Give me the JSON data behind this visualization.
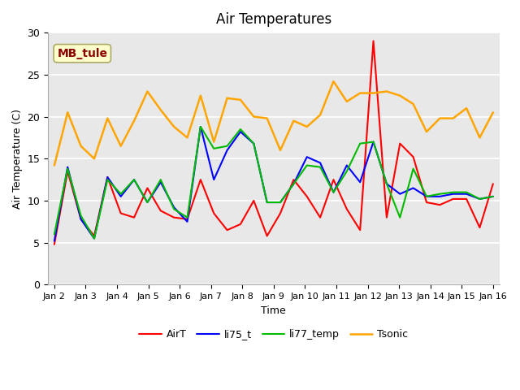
{
  "title": "Air Temperatures",
  "xlabel": "Time",
  "ylabel": "Air Temperature (C)",
  "ylim": [
    0,
    30
  ],
  "yticks": [
    0,
    5,
    10,
    15,
    20,
    25,
    30
  ],
  "xlabels": [
    "Jan 2",
    "Jan 3",
    "Jan 4",
    "Jan 5",
    "Jan 6",
    "Jan 7",
    "Jan 8",
    "Jan 9",
    "Jan 10",
    "Jan 11",
    "Jan 12",
    "Jan 13",
    "Jan 14",
    "Jan 15",
    "Jan 16"
  ],
  "annotation": "MB_tule",
  "annotation_color": "#8B0000",
  "annotation_bg": "#FFFFCC",
  "bg_color": "#E8E8E8",
  "grid_color": "#FFFFFF",
  "series_order": [
    "AirT",
    "li75_t",
    "li77_temp",
    "Tsonic"
  ],
  "series": {
    "AirT": {
      "color": "#FF0000",
      "lw": 1.5,
      "data": [
        4.8,
        13.5,
        7.8,
        5.8,
        12.8,
        8.5,
        8.0,
        11.5,
        8.8,
        8.0,
        7.8,
        12.5,
        8.5,
        6.5,
        7.2,
        10.0,
        5.8,
        8.5,
        12.5,
        10.5,
        8.0,
        12.5,
        9.0,
        6.5,
        29.0,
        8.0,
        16.8,
        15.2,
        9.8,
        9.5,
        10.2,
        10.2,
        6.8,
        12.0
      ]
    },
    "li75_t": {
      "color": "#0000FF",
      "lw": 1.5,
      "data": [
        5.2,
        14.0,
        7.8,
        5.5,
        12.8,
        10.5,
        12.5,
        9.8,
        12.2,
        9.2,
        7.5,
        18.8,
        12.5,
        16.0,
        18.2,
        16.8,
        9.8,
        9.8,
        12.0,
        15.2,
        14.5,
        11.0,
        14.2,
        12.2,
        17.0,
        12.0,
        10.8,
        11.5,
        10.5,
        10.5,
        10.8,
        10.8,
        10.2,
        10.5
      ]
    },
    "li77_temp": {
      "color": "#00BB00",
      "lw": 1.5,
      "data": [
        6.0,
        13.8,
        8.2,
        5.5,
        12.5,
        10.8,
        12.5,
        9.8,
        12.5,
        9.0,
        8.0,
        18.8,
        16.2,
        16.5,
        18.5,
        16.8,
        9.8,
        9.8,
        12.0,
        14.2,
        14.0,
        11.0,
        13.5,
        16.8,
        17.0,
        12.0,
        8.0,
        13.8,
        10.5,
        10.8,
        11.0,
        11.0,
        10.2,
        10.5
      ]
    },
    "Tsonic": {
      "color": "#FFA500",
      "lw": 1.8,
      "data": [
        14.2,
        20.5,
        16.5,
        15.0,
        19.8,
        16.5,
        19.5,
        23.0,
        20.8,
        18.8,
        17.5,
        22.5,
        17.0,
        22.2,
        22.0,
        20.0,
        19.8,
        16.0,
        19.5,
        18.8,
        20.2,
        24.2,
        21.8,
        22.8,
        22.8,
        23.0,
        22.5,
        21.5,
        18.2,
        19.8,
        19.8,
        21.0,
        17.5,
        20.5
      ]
    }
  }
}
